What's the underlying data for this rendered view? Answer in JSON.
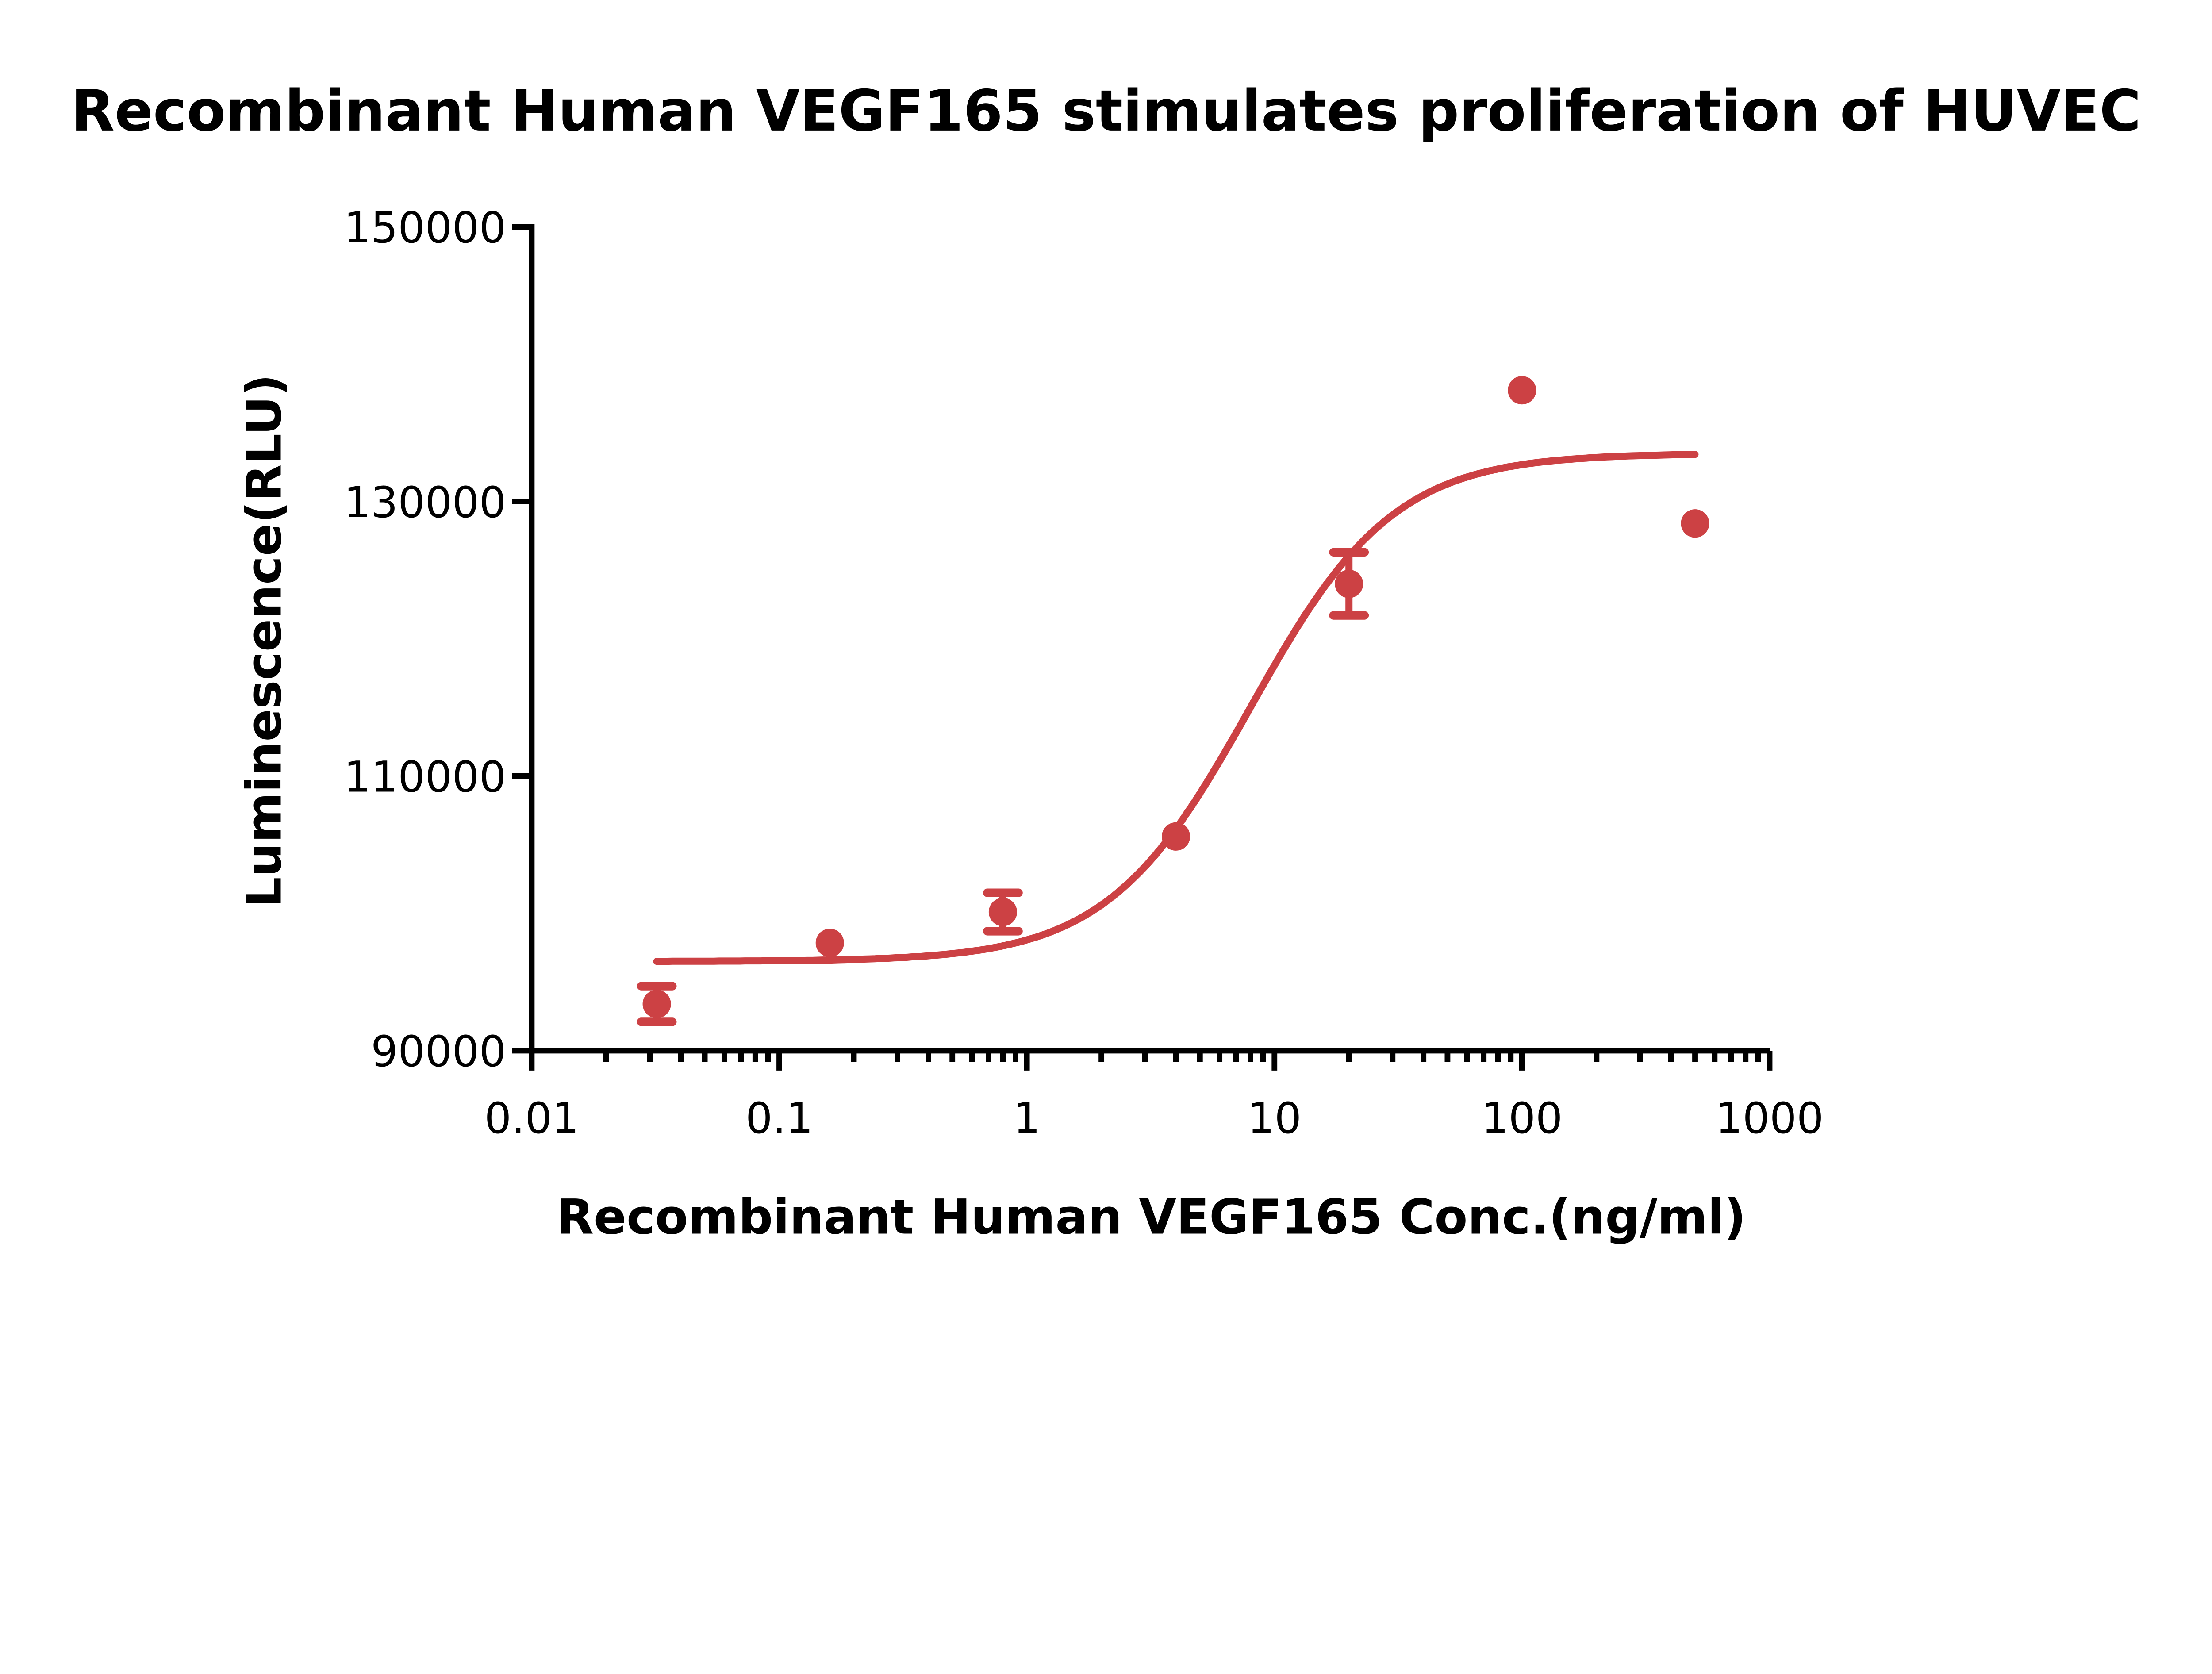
{
  "chart_data": {
    "type": "scatter",
    "title": "Recombinant Human VEGF165 stimulates proliferation of HUVEC",
    "xlabel": "Recombinant Human VEGF165 Conc.(ng/ml)",
    "ylabel": "Luminescence(RLU)",
    "xscale": "log",
    "xlim": [
      0.01,
      1000
    ],
    "ylim": [
      90000,
      150000
    ],
    "xticks": [
      0.01,
      0.1,
      1,
      10,
      100,
      1000
    ],
    "xtick_labels": [
      "0.01",
      "0.1",
      "1",
      "10",
      "100",
      "1000"
    ],
    "yticks": [
      90000,
      110000,
      130000,
      150000
    ],
    "ytick_labels": [
      "90000",
      "110000",
      "130000",
      "150000"
    ],
    "grid": false,
    "color": "#CC4144",
    "series": [
      {
        "name": "VEGF165",
        "x": [
          0.032,
          0.16,
          0.8,
          4,
          20,
          100,
          500
        ],
        "y": [
          93400,
          97850,
          100100,
          105600,
          124000,
          138100,
          128400
        ],
        "error": [
          1300,
          0,
          1400,
          0,
          2300,
          0,
          0
        ]
      }
    ],
    "fit": {
      "model": "4PL",
      "bottom": 96500,
      "top": 133500,
      "ec50": 8,
      "hill": 1.5,
      "x_range": [
        0.032,
        500
      ]
    }
  }
}
